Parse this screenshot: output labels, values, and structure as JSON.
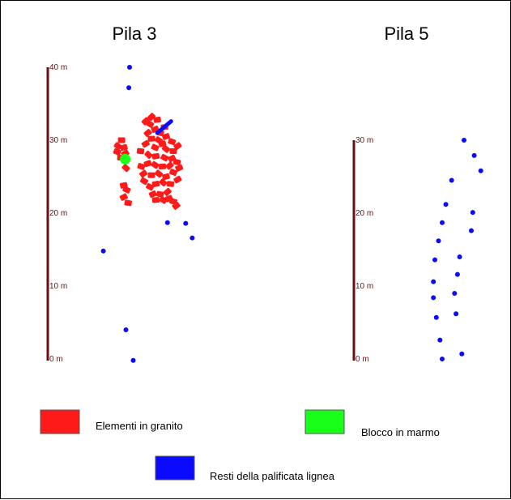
{
  "panels": [
    {
      "title": "Pila 3",
      "scale_ticks": [
        "40 m",
        "30 m",
        "20 m",
        "10 m",
        "0 m"
      ],
      "piles_m": [
        {
          "x": 0.0,
          "y": 40.0
        },
        {
          "x": -0.1,
          "y": 37.2
        },
        {
          "x": 5.2,
          "y": 18.7
        },
        {
          "x": 7.7,
          "y": 18.6
        },
        {
          "x": 8.6,
          "y": 16.6
        },
        {
          "x": -3.6,
          "y": 14.8
        },
        {
          "x": -0.5,
          "y": 4.0
        },
        {
          "x": 0.5,
          "y": -0.2
        }
      ],
      "granite_blocks": [
        {
          "x": 3.0,
          "y": 33.2
        },
        {
          "x": 3.8,
          "y": 32.8
        },
        {
          "x": 2.8,
          "y": 32.2
        },
        {
          "x": 3.5,
          "y": 31.5
        },
        {
          "x": 4.2,
          "y": 31.0
        },
        {
          "x": 2.5,
          "y": 31.0
        },
        {
          "x": 3.0,
          "y": 30.2
        },
        {
          "x": 4.0,
          "y": 30.0
        },
        {
          "x": 5.0,
          "y": 30.5
        },
        {
          "x": 5.8,
          "y": 29.8
        },
        {
          "x": 6.6,
          "y": 29.2
        },
        {
          "x": 6.0,
          "y": 28.5
        },
        {
          "x": 5.0,
          "y": 28.8
        },
        {
          "x": 4.5,
          "y": 29.5
        },
        {
          "x": 3.5,
          "y": 29.0
        },
        {
          "x": 2.2,
          "y": 29.5
        },
        {
          "x": 1.5,
          "y": 28.5
        },
        {
          "x": 2.6,
          "y": 28.0
        },
        {
          "x": 3.6,
          "y": 27.8
        },
        {
          "x": 4.8,
          "y": 27.6
        },
        {
          "x": 5.8,
          "y": 27.5
        },
        {
          "x": 6.5,
          "y": 27.0
        },
        {
          "x": 5.5,
          "y": 26.5
        },
        {
          "x": 4.5,
          "y": 26.4
        },
        {
          "x": 3.5,
          "y": 26.6
        },
        {
          "x": 2.5,
          "y": 26.8
        },
        {
          "x": 1.6,
          "y": 26.4
        },
        {
          "x": 1.9,
          "y": 25.4
        },
        {
          "x": 3.0,
          "y": 25.2
        },
        {
          "x": 4.0,
          "y": 25.4
        },
        {
          "x": 5.0,
          "y": 25.0
        },
        {
          "x": 6.0,
          "y": 25.6
        },
        {
          "x": 6.6,
          "y": 24.6
        },
        {
          "x": 5.6,
          "y": 24.0
        },
        {
          "x": 4.6,
          "y": 24.2
        },
        {
          "x": 3.6,
          "y": 24.0
        },
        {
          "x": 2.8,
          "y": 23.6
        },
        {
          "x": 3.2,
          "y": 22.6
        },
        {
          "x": 4.2,
          "y": 22.6
        },
        {
          "x": 5.2,
          "y": 22.9
        },
        {
          "x": 3.6,
          "y": 21.8
        },
        {
          "x": 4.6,
          "y": 21.8
        },
        {
          "x": 5.4,
          "y": 22.0
        },
        {
          "x": 6.0,
          "y": 21.6
        },
        {
          "x": 6.4,
          "y": 21.0
        },
        {
          "x": -1.1,
          "y": 30.0
        },
        {
          "x": -1.6,
          "y": 29.2
        },
        {
          "x": -0.8,
          "y": 29.0
        },
        {
          "x": -1.7,
          "y": 28.4
        },
        {
          "x": -0.6,
          "y": 28.2
        },
        {
          "x": -1.2,
          "y": 27.6
        },
        {
          "x": -0.5,
          "y": 26.2
        },
        {
          "x": -0.8,
          "y": 23.8
        },
        {
          "x": -0.4,
          "y": 23.2
        },
        {
          "x": -0.8,
          "y": 22.2
        },
        {
          "x": -0.2,
          "y": 21.4
        },
        {
          "x": 2.2,
          "y": 32.6
        },
        {
          "x": 4.8,
          "y": 31.8
        },
        {
          "x": 2.0,
          "y": 24.4
        },
        {
          "x": 6.8,
          "y": 26.2
        }
      ],
      "marble_block": {
        "x": -0.6,
        "y": 27.4
      },
      "timber_remains": [
        {
          "x": 3.8,
          "y": 31.0
        },
        {
          "x": 5.7,
          "y": 32.6
        }
      ]
    },
    {
      "title": "Pila 5",
      "scale_ticks": [
        "30 m",
        "20 m",
        "10 m",
        "0 m"
      ],
      "piles_m": [
        {
          "x": 3.0,
          "y": 30.0
        },
        {
          "x": 4.4,
          "y": 27.9
        },
        {
          "x": 5.3,
          "y": 25.8
        },
        {
          "x": 1.3,
          "y": 24.5
        },
        {
          "x": 0.5,
          "y": 21.2
        },
        {
          "x": 4.2,
          "y": 20.1
        },
        {
          "x": 0.0,
          "y": 18.7
        },
        {
          "x": 4.0,
          "y": 17.6
        },
        {
          "x": -0.5,
          "y": 16.2
        },
        {
          "x": 2.4,
          "y": 14.0
        },
        {
          "x": -1.0,
          "y": 13.6
        },
        {
          "x": 2.1,
          "y": 11.6
        },
        {
          "x": -1.2,
          "y": 10.6
        },
        {
          "x": 1.7,
          "y": 9.0
        },
        {
          "x": -1.2,
          "y": 8.4
        },
        {
          "x": 1.9,
          "y": 6.2
        },
        {
          "x": -0.8,
          "y": 5.7
        },
        {
          "x": -0.3,
          "y": 2.6
        },
        {
          "x": 2.7,
          "y": 0.7
        },
        {
          "x": 0.0,
          "y": 0.0
        }
      ]
    }
  ],
  "legend": {
    "granite_label": "Elementi in granito",
    "marble_label": "Blocco in marmo",
    "timber_label": "Resti della palificata lignea"
  },
  "colors": {
    "granite": "#ff1a1a",
    "marble": "#1aff1a",
    "timber": "#0a0aff",
    "scale_bar": "#6b0f16",
    "frame": "#000000"
  }
}
